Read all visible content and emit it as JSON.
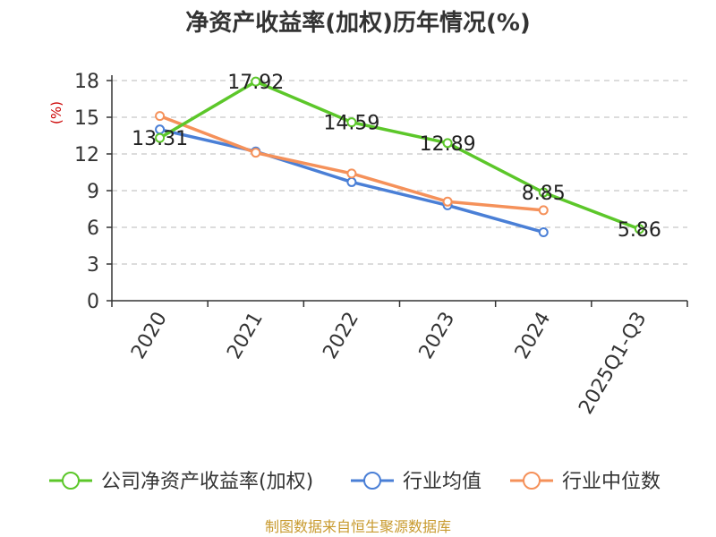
{
  "chart_data": {
    "type": "line",
    "title": "净资产收益率(加权)历年情况(%)",
    "ylabel": "(%)",
    "xlabel": "",
    "categories": [
      "2020",
      "2021",
      "2022",
      "2023",
      "2024",
      "2025Q1-Q3"
    ],
    "ylim": [
      0,
      18
    ],
    "yticks": [
      0,
      3,
      6,
      9,
      12,
      15,
      18
    ],
    "grid": true,
    "legend_position": "bottom",
    "series": [
      {
        "name": "公司净资产收益率(加权)",
        "color": "#5cc72a",
        "values": [
          13.31,
          17.92,
          14.59,
          12.89,
          8.85,
          5.86
        ],
        "labels": [
          "13.31",
          "17.92",
          "14.59",
          "12.89",
          "8.85",
          "5.86"
        ]
      },
      {
        "name": "行业均值",
        "color": "#4a7fd6",
        "values": [
          14.0,
          12.2,
          9.7,
          7.8,
          5.6,
          null
        ]
      },
      {
        "name": "行业中位数",
        "color": "#f5915a",
        "values": [
          15.1,
          12.1,
          10.4,
          8.1,
          7.4,
          null
        ]
      }
    ]
  },
  "footer": {
    "source": "制图数据来自恒生聚源数据库"
  }
}
